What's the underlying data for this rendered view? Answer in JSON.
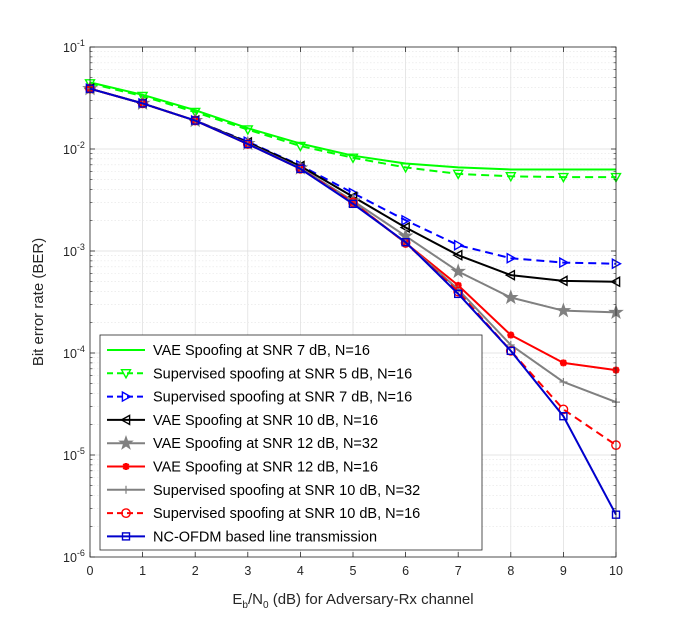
{
  "chart_data": {
    "type": "line",
    "title": "",
    "xlabel": "E_b/N_0 (dB) for Adversary-Rx channel",
    "xlabel_parts": {
      "base1": "E",
      "sub1": "b",
      "mid": "/N",
      "sub2": "0",
      "rest": " (dB) for Adversary-Rx channel"
    },
    "ylabel": "Bit error rate (BER)",
    "xlim": [
      0,
      10
    ],
    "ylim": [
      1e-06,
      0.1
    ],
    "yscale": "log",
    "grid": true,
    "minor_grid": true,
    "legend_position": "lower-left",
    "x_ticks": [
      0,
      1,
      2,
      3,
      4,
      5,
      6,
      7,
      8,
      9,
      10
    ],
    "x_tick_labels": [
      "0",
      "1",
      "2",
      "3",
      "4",
      "5",
      "6",
      "7",
      "8",
      "9",
      "10"
    ],
    "y_ticks": [
      1e-06,
      1e-05,
      0.0001,
      0.001,
      0.01,
      0.1
    ],
    "y_tick_labels": [
      {
        "base": "10",
        "exp": "-6"
      },
      {
        "base": "10",
        "exp": "-5"
      },
      {
        "base": "10",
        "exp": "-4"
      },
      {
        "base": "10",
        "exp": "-3"
      },
      {
        "base": "10",
        "exp": "-2"
      },
      {
        "base": "10",
        "exp": "-1"
      }
    ],
    "series": [
      {
        "name": "VAE Spoofing at SNR 7 dB, N=16",
        "color": "#00ff00",
        "dash": "solid",
        "marker": "none",
        "x": [
          0,
          1,
          2,
          3,
          4,
          5,
          6,
          7,
          8,
          9,
          10
        ],
        "y": [
          0.045,
          0.034,
          0.024,
          0.016,
          0.0113,
          0.0086,
          0.0072,
          0.0066,
          0.0063,
          0.0063,
          0.0063
        ]
      },
      {
        "name": "Supervised spoofing at SNR 5 dB, N=16",
        "color": "#00ff00",
        "dash": "dashed",
        "marker": "triangle-down",
        "x": [
          0,
          1,
          2,
          3,
          4,
          5,
          6,
          7,
          8,
          9,
          10
        ],
        "y": [
          0.044,
          0.033,
          0.023,
          0.0155,
          0.0107,
          0.0082,
          0.0066,
          0.0057,
          0.0054,
          0.0053,
          0.0053
        ]
      },
      {
        "name": "Supervised spoofing at SNR 7 dB, N=16",
        "color": "#0000ff",
        "dash": "dashed",
        "marker": "triangle-right",
        "x": [
          0,
          1,
          2,
          3,
          4,
          5,
          6,
          7,
          8,
          9,
          10
        ],
        "y": [
          0.039,
          0.028,
          0.019,
          0.0118,
          0.0069,
          0.0037,
          0.002,
          0.00114,
          0.00085,
          0.00077,
          0.00075
        ]
      },
      {
        "name": "VAE Spoofing at SNR 10 dB, N=16",
        "color": "#000000",
        "dash": "solid",
        "marker": "triangle-left",
        "x": [
          0,
          1,
          2,
          3,
          4,
          5,
          6,
          7,
          8,
          9,
          10
        ],
        "y": [
          0.039,
          0.028,
          0.019,
          0.0116,
          0.0068,
          0.0034,
          0.0017,
          0.00091,
          0.00058,
          0.00051,
          0.0005
        ]
      },
      {
        "name": "VAE Spoofing at SNR 12 dB, N=32",
        "color": "#808080",
        "dash": "solid",
        "marker": "star",
        "x": [
          0,
          1,
          2,
          3,
          4,
          5,
          6,
          7,
          8,
          9,
          10
        ],
        "y": [
          0.039,
          0.028,
          0.019,
          0.0113,
          0.0065,
          0.0031,
          0.0014,
          0.00063,
          0.00035,
          0.00026,
          0.00025
        ]
      },
      {
        "name": "VAE Spoofing at SNR 12 dB, N=16",
        "color": "#ff0000",
        "dash": "solid",
        "marker": "asterisk",
        "x": [
          0,
          1,
          2,
          3,
          4,
          5,
          6,
          7,
          8,
          9,
          10
        ],
        "y": [
          0.039,
          0.028,
          0.019,
          0.0112,
          0.0064,
          0.003,
          0.0012,
          0.00046,
          0.00015,
          8e-05,
          6.8e-05
        ]
      },
      {
        "name": "Supervised spoofing at SNR 10 dB, N=32",
        "color": "#808080",
        "dash": "solid",
        "marker": "plus",
        "x": [
          0,
          1,
          2,
          3,
          4,
          5,
          6,
          7,
          8,
          9,
          10
        ],
        "y": [
          0.039,
          0.028,
          0.019,
          0.0112,
          0.0064,
          0.003,
          0.0012,
          0.00042,
          0.00012,
          5.2e-05,
          3.3e-05
        ]
      },
      {
        "name": "Supervised spoofing at SNR 10 dB, N=16",
        "color": "#ff0000",
        "dash": "dashed",
        "marker": "circle",
        "x": [
          0,
          1,
          2,
          3,
          4,
          5,
          6,
          7,
          8,
          9,
          10
        ],
        "y": [
          0.039,
          0.028,
          0.019,
          0.0112,
          0.0064,
          0.003,
          0.0012,
          0.0004,
          0.000105,
          2.8e-05,
          1.25e-05
        ]
      },
      {
        "name": "NC-OFDM based line transmission",
        "color": "#0000cc",
        "dash": "solid",
        "marker": "square",
        "x": [
          0,
          1,
          2,
          3,
          4,
          5,
          6,
          7,
          8,
          9,
          10
        ],
        "y": [
          0.039,
          0.028,
          0.019,
          0.0112,
          0.0064,
          0.0029,
          0.00122,
          0.00038,
          0.000105,
          2.4e-05,
          2.6e-06
        ]
      }
    ]
  }
}
